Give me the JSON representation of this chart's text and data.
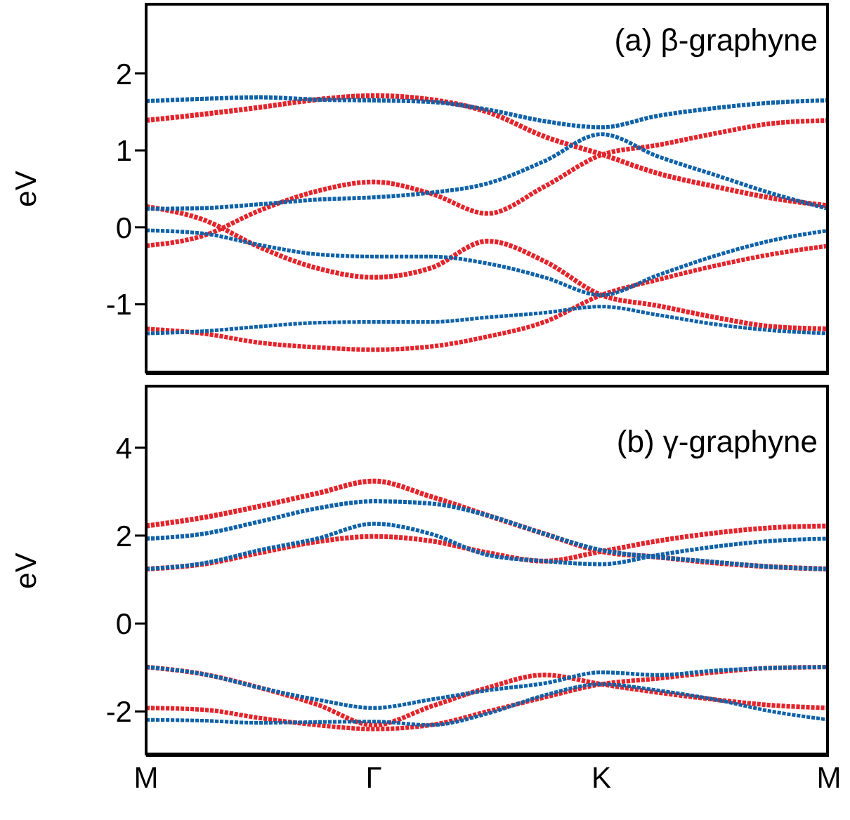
{
  "chart_data": [
    {
      "type": "line",
      "title": "(a) β-graphyne",
      "ylabel": "eV",
      "line_style": "dotted",
      "tick_labels": "y",
      "categories": [
        null,
        null,
        null,
        null,
        null,
        null,
        null,
        null,
        null,
        null,
        null,
        null,
        null
      ],
      "ylim": [
        -1.9,
        2.9
      ],
      "yticks": [
        -1,
        0,
        1,
        2
      ],
      "series": [
        {
          "color": "#e3242b",
          "values": [
            1.39,
            1.47,
            1.56,
            1.66,
            1.71,
            1.66,
            1.5,
            1.18,
            0.95,
            0.7,
            0.53,
            0.38,
            0.28
          ]
        },
        {
          "color": "#e3242b",
          "values": [
            0.27,
            0.1,
            -0.26,
            -0.53,
            -0.65,
            -0.53,
            -0.18,
            -0.44,
            -0.88,
            -1.02,
            -1.17,
            -1.29,
            -1.32
          ]
        },
        {
          "color": "#e3242b",
          "values": [
            -0.24,
            -0.11,
            0.22,
            0.47,
            0.59,
            0.44,
            0.18,
            0.53,
            0.94,
            1.07,
            1.22,
            1.35,
            1.39
          ]
        },
        {
          "color": "#e3242b",
          "values": [
            -1.32,
            -1.38,
            -1.5,
            -1.56,
            -1.59,
            -1.55,
            -1.42,
            -1.23,
            -0.88,
            -0.68,
            -0.5,
            -0.35,
            -0.24
          ]
        },
        {
          "color": "#0f62a8",
          "values": [
            1.64,
            1.67,
            1.69,
            1.66,
            1.65,
            1.63,
            1.53,
            1.38,
            1.3,
            1.45,
            1.55,
            1.62,
            1.65
          ]
        },
        {
          "color": "#0f62a8",
          "values": [
            0.24,
            0.25,
            0.3,
            0.36,
            0.39,
            0.45,
            0.57,
            0.86,
            1.21,
            0.92,
            0.68,
            0.44,
            0.24
          ]
        },
        {
          "color": "#0f62a8",
          "values": [
            -0.04,
            -0.08,
            -0.23,
            -0.35,
            -0.38,
            -0.38,
            -0.47,
            -0.65,
            -0.88,
            -0.62,
            -0.37,
            -0.17,
            -0.04
          ]
        },
        {
          "color": "#0f62a8",
          "values": [
            -1.38,
            -1.35,
            -1.29,
            -1.24,
            -1.23,
            -1.23,
            -1.17,
            -1.11,
            -1.03,
            -1.14,
            -1.26,
            -1.34,
            -1.38
          ]
        }
      ]
    },
    {
      "type": "line",
      "title": "(b) γ-graphyne",
      "ylabel": "eV",
      "line_style": "dotted",
      "categories": [
        "M",
        null,
        null,
        null,
        "Γ",
        null,
        null,
        null,
        "K",
        null,
        null,
        null,
        "M"
      ],
      "ylim": [
        -3,
        5.4
      ],
      "yticks": [
        -2,
        0,
        2,
        4
      ],
      "series": [
        {
          "color": "#e3242b",
          "values": [
            2.22,
            2.41,
            2.67,
            2.96,
            3.24,
            2.89,
            2.46,
            2.04,
            1.64,
            1.51,
            1.38,
            1.29,
            1.24
          ]
        },
        {
          "color": "#e3242b",
          "values": [
            1.24,
            1.35,
            1.61,
            1.86,
            1.98,
            1.88,
            1.61,
            1.42,
            1.64,
            1.88,
            2.06,
            2.18,
            2.22
          ]
        },
        {
          "color": "#e3242b",
          "values": [
            -0.99,
            -1.15,
            -1.46,
            -1.84,
            -2.31,
            -1.89,
            -1.46,
            -1.17,
            -1.38,
            -1.57,
            -1.73,
            -1.86,
            -1.92
          ]
        },
        {
          "color": "#e3242b",
          "values": [
            -1.92,
            -1.96,
            -2.15,
            -2.31,
            -2.4,
            -2.31,
            -2,
            -1.68,
            -1.38,
            -1.25,
            -1.11,
            -1.01,
            -0.99
          ]
        },
        {
          "color": "#0f62a8",
          "values": [
            1.93,
            2.04,
            2.32,
            2.62,
            2.78,
            2.73,
            2.46,
            2.04,
            1.67,
            1.51,
            1.4,
            1.29,
            1.24
          ]
        },
        {
          "color": "#0f62a8",
          "values": [
            1.24,
            1.37,
            1.67,
            1.93,
            2.27,
            2.04,
            1.56,
            1.42,
            1.35,
            1.56,
            1.75,
            1.88,
            1.93
          ]
        },
        {
          "color": "#0f62a8",
          "values": [
            -0.99,
            -1.15,
            -1.46,
            -1.73,
            -1.92,
            -1.73,
            -1.52,
            -1.36,
            -1.11,
            -1.17,
            -1.07,
            -1.01,
            -0.99
          ]
        },
        {
          "color": "#0f62a8",
          "values": [
            -2.19,
            -2.21,
            -2.26,
            -2.24,
            -2.23,
            -2.31,
            -2.05,
            -1.63,
            -1.38,
            -1.52,
            -1.73,
            -2,
            -2.19
          ]
        }
      ]
    }
  ]
}
